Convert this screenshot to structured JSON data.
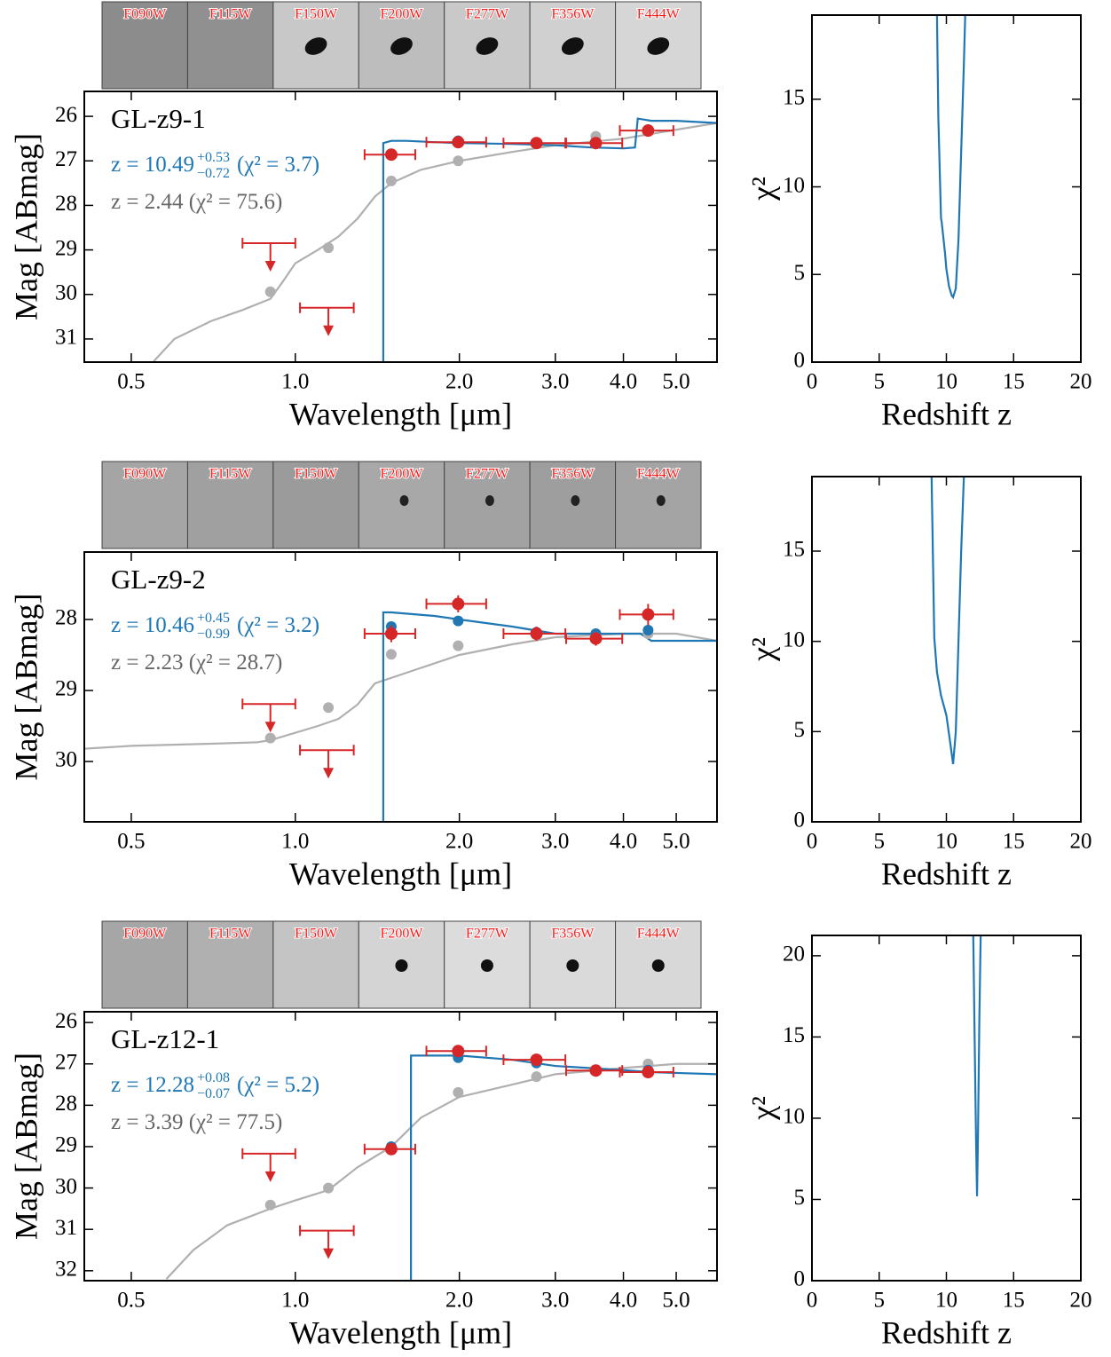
{
  "chart_data": [
    {
      "type": "sed",
      "cutout_labels": [
        "F090W",
        "F115W",
        "F150W",
        "F200W",
        "F277W",
        "F356W",
        "F444W"
      ],
      "xlabel": "Wavelength [μm]",
      "ylabel": "Mag [ABmag]",
      "xscale": "log",
      "xlim": [
        0.41,
        5.94
      ],
      "xticks": [
        0.5,
        {
          "value": 1,
          "label": "1.0"
        },
        {
          "value": 2,
          "label": "2.0"
        },
        {
          "value": 3,
          "label": "3.0"
        },
        {
          "value": 4,
          "label": "4.0"
        },
        {
          "value": 5,
          "label": "5.0"
        }
      ],
      "ylim": [
        31.52,
        25.44
      ],
      "yticks": [
        26,
        27,
        28,
        29,
        30,
        31
      ],
      "annotations": [
        {
          "text": "GL-z9-1",
          "color": "#000000"
        },
        {
          "text": "z = 10.49",
          "sup": "+0.53",
          "sub": "−0.72",
          "tail": "(χ² = 3.7)",
          "color": "#1f77b4"
        },
        {
          "text": "z = 2.44 (χ² = 75.6)",
          "color": "#666666"
        }
      ],
      "series": [
        {
          "kind": "line",
          "color": "#b0b0b0",
          "x": [
            0.55,
            0.6,
            0.7,
            0.8,
            0.9,
            0.95,
            1.0,
            1.1,
            1.2,
            1.3,
            1.4,
            1.5,
            1.7,
            2.0,
            2.5,
            3.0,
            4.0,
            5.0,
            5.94
          ],
          "values": [
            31.5,
            31.0,
            30.6,
            30.35,
            30.1,
            29.7,
            29.3,
            29.0,
            28.7,
            28.3,
            27.8,
            27.5,
            27.2,
            27.0,
            26.8,
            26.65,
            26.5,
            26.3,
            26.15
          ]
        },
        {
          "kind": "line",
          "color": "#1f77b4",
          "x": [
            1.45,
            1.45,
            1.5,
            1.6,
            1.8,
            2.0,
            2.5,
            3.0,
            3.5,
            4.0,
            4.2,
            4.25,
            4.5,
            5.0,
            5.94
          ],
          "values": [
            35,
            26.6,
            26.55,
            26.55,
            26.58,
            26.6,
            26.62,
            26.65,
            26.7,
            26.72,
            26.7,
            26.05,
            26.1,
            26.1,
            26.15
          ]
        },
        {
          "kind": "points",
          "color": "#b0b0b0",
          "x": [
            0.9,
            1.15,
            1.5,
            1.99,
            2.77,
            3.56,
            4.44
          ],
          "values": [
            29.94,
            28.95,
            27.45,
            27.0,
            26.6,
            26.45,
            26.3
          ]
        },
        {
          "kind": "points",
          "color": "#1f77b4",
          "x": [
            0.9,
            1.15,
            1.5,
            1.99,
            2.77,
            3.56,
            4.44
          ],
          "values": [
            null,
            null,
            26.85,
            26.55,
            26.6,
            26.62,
            26.3
          ]
        },
        {
          "kind": "errorbar",
          "color": "#d62728",
          "x": [
            0.9,
            1.15,
            1.5,
            1.99,
            2.77,
            3.56,
            4.44
          ],
          "xerr": [
            0.1,
            0.13,
            0.16,
            0.25,
            0.36,
            0.42,
            0.5
          ],
          "values": [
            28.85,
            30.3,
            26.86,
            26.58,
            26.6,
            26.6,
            26.32
          ],
          "yerr": [
            0,
            0,
            0.1,
            0.08,
            0.08,
            0.08,
            0.1
          ],
          "upper_limit": [
            true,
            true,
            false,
            false,
            false,
            false,
            false
          ]
        }
      ]
    },
    {
      "type": "chi2",
      "xlabel": "Redshift z",
      "ylabel": "χ²",
      "xlim": [
        0,
        20
      ],
      "xticks": [
        0,
        5,
        10,
        15,
        20
      ],
      "ylim": [
        0,
        19.8
      ],
      "yticks": [
        0,
        5,
        10,
        15
      ],
      "series": [
        {
          "kind": "line",
          "color": "#1f77b4",
          "x": [
            9.3,
            9.4,
            9.6,
            9.65,
            9.9,
            10.0,
            10.2,
            10.4,
            10.5,
            10.7,
            10.9,
            11.1,
            11.3,
            11.4
          ],
          "values": [
            19.8,
            14,
            8.2,
            8.0,
            6.2,
            5.3,
            4.3,
            3.8,
            3.7,
            4.2,
            7,
            12,
            17,
            19.8
          ]
        }
      ]
    },
    {
      "type": "sed",
      "cutout_labels": [
        "F090W",
        "F115W",
        "F150W",
        "F200W",
        "F277W",
        "F356W",
        "F444W"
      ],
      "xlabel": "Wavelength [μm]",
      "ylabel": "Mag [ABmag]",
      "xscale": "log",
      "xlim": [
        0.41,
        5.94
      ],
      "xticks": [
        0.5,
        {
          "value": 1,
          "label": "1.0"
        },
        {
          "value": 2,
          "label": "2.0"
        },
        {
          "value": 3,
          "label": "3.0"
        },
        {
          "value": 4,
          "label": "4.0"
        },
        {
          "value": 5,
          "label": "5.0"
        }
      ],
      "ylim": [
        30.85,
        27.05
      ],
      "yticks": [
        28,
        29,
        30
      ],
      "annotations": [
        {
          "text": "GL-z9-2",
          "color": "#000000"
        },
        {
          "text": "z = 10.46",
          "sup": "+0.45",
          "sub": "−0.99",
          "tail": "(χ² = 3.2)",
          "color": "#1f77b4"
        },
        {
          "text": "z = 2.23 (χ² = 28.7)",
          "color": "#666666"
        }
      ],
      "series": [
        {
          "kind": "line",
          "color": "#b0b0b0",
          "x": [
            0.41,
            0.5,
            0.7,
            0.85,
            0.9,
            1.1,
            1.2,
            1.3,
            1.4,
            1.6,
            2.0,
            2.5,
            3.0,
            4.0,
            5.0,
            5.94
          ],
          "values": [
            29.82,
            29.78,
            29.75,
            29.73,
            29.7,
            29.5,
            29.4,
            29.2,
            28.9,
            28.75,
            28.5,
            28.35,
            28.25,
            28.2,
            28.2,
            28.3
          ]
        },
        {
          "kind": "line",
          "color": "#1f77b4",
          "x": [
            1.45,
            1.45,
            1.5,
            1.8,
            2.0,
            2.5,
            3.0,
            4.0,
            4.3,
            4.5,
            5.94
          ],
          "values": [
            32,
            27.9,
            27.9,
            27.95,
            28.0,
            28.1,
            28.2,
            28.2,
            28.2,
            28.3,
            28.3
          ]
        },
        {
          "kind": "points",
          "color": "#b0b0b0",
          "x": [
            0.9,
            1.15,
            1.5,
            1.99,
            2.77,
            3.56,
            4.44
          ],
          "values": [
            29.67,
            29.24,
            28.49,
            28.37,
            28.2,
            28.2,
            28.2
          ]
        },
        {
          "kind": "points",
          "color": "#1f77b4",
          "x": [
            0.9,
            1.15,
            1.5,
            1.99,
            2.77,
            3.56,
            4.44
          ],
          "values": [
            null,
            null,
            28.1,
            28.02,
            28.18,
            28.2,
            28.15
          ]
        },
        {
          "kind": "errorbar",
          "color": "#d62728",
          "x": [
            0.9,
            1.15,
            1.5,
            1.99,
            2.77,
            3.56,
            4.44
          ],
          "xerr": [
            0.1,
            0.13,
            0.16,
            0.25,
            0.36,
            0.42,
            0.5
          ],
          "values": [
            29.19,
            29.84,
            28.2,
            27.78,
            28.2,
            28.27,
            27.93
          ],
          "yerr": [
            0,
            0,
            0.12,
            0.12,
            0.1,
            0.1,
            0.15
          ],
          "upper_limit": [
            true,
            true,
            false,
            false,
            false,
            false,
            false
          ]
        }
      ]
    },
    {
      "type": "chi2",
      "xlabel": "Redshift z",
      "ylabel": "χ²",
      "xlim": [
        0,
        20
      ],
      "xticks": [
        0,
        5,
        10,
        15,
        20
      ],
      "ylim": [
        0,
        19.13
      ],
      "yticks": [
        0,
        5,
        10,
        15
      ],
      "series": [
        {
          "kind": "line",
          "color": "#1f77b4",
          "x": [
            8.9,
            9.1,
            9.3,
            9.6,
            10.0,
            10.3,
            10.5,
            10.7,
            10.9,
            11.1,
            11.3
          ],
          "values": [
            19.1,
            10.2,
            8.3,
            7.0,
            5.9,
            4.3,
            3.2,
            5,
            10,
            15,
            19.1
          ]
        }
      ]
    },
    {
      "type": "sed",
      "cutout_labels": [
        "F090W",
        "F115W",
        "F150W",
        "F200W",
        "F277W",
        "F356W",
        "F444W"
      ],
      "xlabel": "Wavelength [μm]",
      "ylabel": "Mag [ABmag]",
      "xscale": "log",
      "xlim": [
        0.41,
        5.94
      ],
      "xticks": [
        0.5,
        {
          "value": 1,
          "label": "1.0"
        },
        {
          "value": 2,
          "label": "2.0"
        },
        {
          "value": 3,
          "label": "3.0"
        },
        {
          "value": 4,
          "label": "4.0"
        },
        {
          "value": 5,
          "label": "5.0"
        }
      ],
      "ylim": [
        32.24,
        25.74
      ],
      "yticks": [
        26,
        27,
        28,
        29,
        30,
        31,
        32
      ],
      "annotations": [
        {
          "text": "GL-z12-1",
          "color": "#000000"
        },
        {
          "text": "z = 12.28",
          "sup": "+0.08",
          "sub": "−0.07",
          "tail": "(χ² = 5.2)",
          "color": "#1f77b4"
        },
        {
          "text": "z = 3.39 (χ² = 77.5)",
          "color": "#666666"
        }
      ],
      "series": [
        {
          "kind": "line",
          "color": "#b0b0b0",
          "x": [
            0.58,
            0.65,
            0.75,
            0.9,
            1.0,
            1.15,
            1.3,
            1.5,
            1.7,
            2.0,
            2.5,
            3.0,
            4.0,
            5.0,
            5.94
          ],
          "values": [
            32.2,
            31.5,
            30.9,
            30.5,
            30.3,
            30.05,
            29.5,
            29.0,
            28.3,
            27.8,
            27.5,
            27.25,
            27.1,
            27.0,
            27.0
          ]
        },
        {
          "kind": "line",
          "color": "#1f77b4",
          "x": [
            1.63,
            1.63,
            2.0,
            2.5,
            3.0,
            4.0,
            4.5,
            5.94
          ],
          "values": [
            34,
            26.8,
            26.8,
            26.9,
            27.05,
            27.15,
            27.2,
            27.25
          ]
        },
        {
          "kind": "points",
          "color": "#b0b0b0",
          "x": [
            0.9,
            1.15,
            1.5,
            1.99,
            2.77,
            3.56,
            4.44
          ],
          "values": [
            30.41,
            30.0,
            29.0,
            27.69,
            27.31,
            27.15,
            27.0
          ]
        },
        {
          "kind": "points",
          "color": "#1f77b4",
          "x": [
            0.9,
            1.15,
            1.5,
            1.99,
            2.77,
            3.56,
            4.44
          ],
          "values": [
            null,
            null,
            29.0,
            26.85,
            26.98,
            27.15,
            27.15
          ]
        },
        {
          "kind": "errorbar",
          "color": "#d62728",
          "x": [
            0.9,
            1.15,
            1.5,
            1.99,
            2.77,
            3.56,
            4.44
          ],
          "xerr": [
            0.1,
            0.13,
            0.16,
            0.25,
            0.36,
            0.42,
            0.5
          ],
          "values": [
            29.17,
            31.03,
            29.06,
            26.69,
            26.9,
            27.16,
            27.2
          ],
          "yerr": [
            0,
            0,
            0.08,
            0.06,
            0.08,
            0.08,
            0.08
          ],
          "upper_limit": [
            true,
            true,
            false,
            false,
            false,
            false,
            false
          ]
        }
      ]
    },
    {
      "type": "chi2",
      "xlabel": "Redshift z",
      "ylabel": "χ²",
      "xlim": [
        0,
        20
      ],
      "xticks": [
        0,
        5,
        10,
        15,
        20
      ],
      "ylim": [
        0,
        21.25
      ],
      "yticks": [
        0,
        5,
        10,
        15,
        20
      ],
      "series": [
        {
          "kind": "line",
          "color": "#1f77b4",
          "x": [
            12.0,
            12.1,
            12.2,
            12.28,
            12.35,
            12.45,
            12.55
          ],
          "values": [
            21.2,
            15,
            9,
            5.2,
            9,
            16,
            21.2
          ]
        }
      ]
    }
  ]
}
